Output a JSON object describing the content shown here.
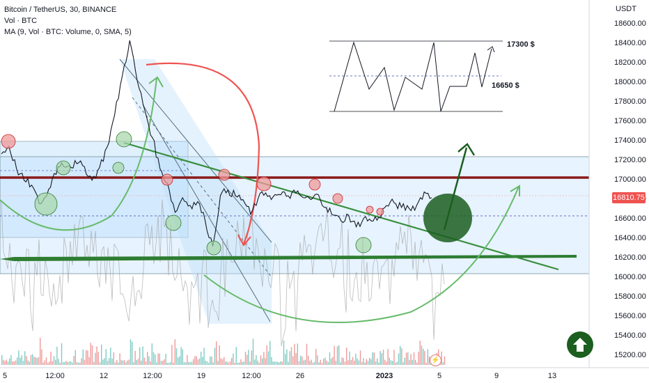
{
  "header": {
    "title": "Bitcoin / TetherUS, 30, BINANCE",
    "vol_label": "Vol · BTC",
    "ma_label": "MA (9, Vol · BTC: Volume, 0, SMA, 5)"
  },
  "chart_data": {
    "type": "line",
    "currency_label": "USDT",
    "current_price": "16810.75",
    "y_ticks": [
      "18600.00",
      "18400.00",
      "18200.00",
      "18000.00",
      "17800.00",
      "17600.00",
      "17400.00",
      "17200.00",
      "17000.00",
      "16800.00",
      "16600.00",
      "16400.00",
      "16200.00",
      "16000.00",
      "15800.00",
      "15600.00",
      "15400.00",
      "15200.00"
    ],
    "x_ticks": [
      "5",
      "12:00",
      "12",
      "12:00",
      "19",
      "12:00",
      "26",
      "2023",
      "5",
      "9",
      "13"
    ],
    "ylim": [
      15150,
      18700
    ],
    "price_series": [
      {
        "t": 0,
        "p": 17250
      },
      {
        "t": 1,
        "p": 17330
      },
      {
        "t": 2,
        "p": 17100
      },
      {
        "t": 3,
        "p": 16980
      },
      {
        "t": 4,
        "p": 16930
      },
      {
        "t": 5,
        "p": 16740
      },
      {
        "t": 6,
        "p": 16820
      },
      {
        "t": 7,
        "p": 17050
      },
      {
        "t": 8,
        "p": 17160
      },
      {
        "t": 9,
        "p": 17130
      },
      {
        "t": 10,
        "p": 17150
      },
      {
        "t": 11,
        "p": 17120
      },
      {
        "t": 12,
        "p": 16980
      },
      {
        "t": 13,
        "p": 17110
      },
      {
        "t": 14,
        "p": 17320
      },
      {
        "t": 15,
        "p": 17650
      },
      {
        "t": 16,
        "p": 18050
      },
      {
        "t": 17,
        "p": 18420
      },
      {
        "t": 18,
        "p": 18000
      },
      {
        "t": 19,
        "p": 17700
      },
      {
        "t": 20,
        "p": 17420
      },
      {
        "t": 21,
        "p": 17100
      },
      {
        "t": 22,
        "p": 16950
      },
      {
        "t": 23,
        "p": 16650
      },
      {
        "t": 24,
        "p": 16800
      },
      {
        "t": 25,
        "p": 16720
      },
      {
        "t": 26,
        "p": 16760
      },
      {
        "t": 27,
        "p": 16560
      },
      {
        "t": 28,
        "p": 16300
      },
      {
        "t": 29,
        "p": 16820
      },
      {
        "t": 30,
        "p": 16880
      },
      {
        "t": 31,
        "p": 16820
      },
      {
        "t": 32,
        "p": 16780
      },
      {
        "t": 33,
        "p": 16630
      },
      {
        "t": 34,
        "p": 16790
      },
      {
        "t": 35,
        "p": 16850
      },
      {
        "t": 36,
        "p": 16810
      },
      {
        "t": 37,
        "p": 16830
      },
      {
        "t": 38,
        "p": 16820
      },
      {
        "t": 39,
        "p": 16850
      },
      {
        "t": 40,
        "p": 16800
      },
      {
        "t": 41,
        "p": 16780
      },
      {
        "t": 42,
        "p": 16830
      },
      {
        "t": 43,
        "p": 16700
      },
      {
        "t": 44,
        "p": 16620
      },
      {
        "t": 45,
        "p": 16560
      },
      {
        "t": 46,
        "p": 16620
      },
      {
        "t": 47,
        "p": 16500
      },
      {
        "t": 48,
        "p": 16590
      },
      {
        "t": 49,
        "p": 16560
      },
      {
        "t": 50,
        "p": 16600
      },
      {
        "t": 51,
        "p": 16720
      },
      {
        "t": 52,
        "p": 16750
      },
      {
        "t": 53,
        "p": 16700
      },
      {
        "t": 54,
        "p": 16690
      },
      {
        "t": 55,
        "p": 16720
      },
      {
        "t": 56,
        "p": 16860
      },
      {
        "t": 57,
        "p": 16800
      }
    ],
    "annotations": [
      {
        "text": "17300 $"
      },
      {
        "text": "16650 $"
      }
    ],
    "colors": {
      "price": "#131722",
      "resistance_line": "#8b1a1a",
      "support_line": "#2e7d32",
      "trend_line": "#388e3c",
      "zone_fill": "#bbdefb",
      "red_marker": "#ef9a9a",
      "green_marker": "#a5d6a7",
      "big_circle": "#1b5e20",
      "arc_red": "#ef5350",
      "arc_green": "#66bb6a"
    },
    "grid": false,
    "legend_position": "top-left"
  },
  "icons": {
    "up_button": "arrow-up-circle-icon",
    "flash_marker": "lightning-icon"
  }
}
